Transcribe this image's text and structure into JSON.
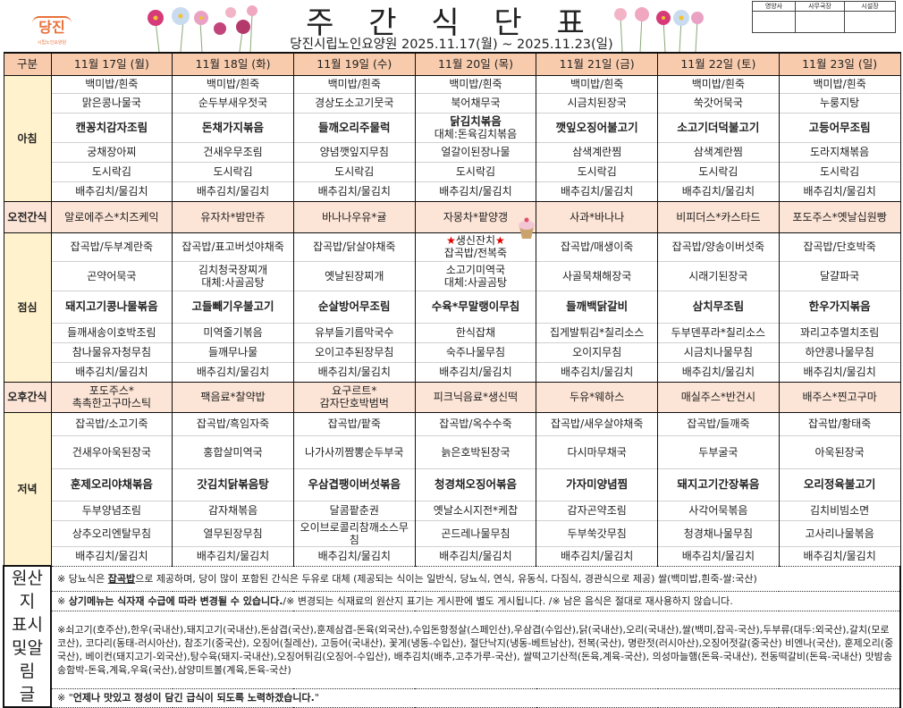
{
  "header": {
    "logo_text": "당진",
    "logo_sub": "시립노인요양원",
    "title": "주 간 식 단 표",
    "subtitle": "당진시립노인요양원 2025.11.17(월) ~ 2025.11.23(일)",
    "approvals": [
      "영양사",
      "사무국장",
      "시설장"
    ]
  },
  "table": {
    "corner": "구분",
    "days": [
      "11월 17일 (월)",
      "11월 18일 (화)",
      "11월 19일 (수)",
      "11월 20일 (목)",
      "11월 21일 (금)",
      "11월 22일 (토)",
      "11월 23일 (일)"
    ],
    "sections": [
      {
        "label": "아침",
        "type": "meal",
        "rows": [
          [
            "백미밥/흰죽",
            "백미밥/흰죽",
            "백미밥/흰죽",
            "백미밥/흰죽",
            "백미밥/흰죽",
            "백미밥/흰죽",
            "백미밥/흰죽"
          ],
          [
            "맑은콩나물국",
            "순두부새우젓국",
            "경상도소고기뭇국",
            "북어채무국",
            "시금치된장국",
            "쑥갓어묵국",
            "누룽지탕"
          ],
          [
            "캔꽁치감자조림",
            "돈채가지볶음",
            "들깨오리주물럭",
            "닭김치볶음\n대체:돈육김치볶음",
            "깻잎오징어불고기",
            "소고기더덕불고기",
            "고등어무조림"
          ],
          [
            "궁채장아찌",
            "건새우무조림",
            "양념깻잎지무침",
            "얼갈이된장나물",
            "삼색계란찜",
            "삼색계란찜",
            "도라지채볶음"
          ],
          [
            "도시락김",
            "도시락김",
            "도시락김",
            "도시락김",
            "도시락김",
            "도시락김",
            "도시락김"
          ],
          [
            "배추김치/물김치",
            "배추김치/물김치",
            "배추김치/물김치",
            "배추김치/물김치",
            "배추김치/물김치",
            "배추김치/물김치",
            "배추김치/물김치"
          ]
        ]
      },
      {
        "label": "오전간식",
        "type": "snack",
        "rows": [
          [
            "알로에주스*치즈케익",
            "유자차*밤만쥬",
            "바나나우유*귤",
            "자몽차*팥양갱",
            "사과*바나나",
            "비피더스*카스타드",
            "포도주스*옛날십원빵"
          ]
        ]
      },
      {
        "label": "점심",
        "type": "meal",
        "rows": [
          [
            "잡곡밥/두부계란죽",
            "잡곡밥/표고버섯야채죽",
            "잡곡밥/닭살야채죽",
            "★생신잔치★\n잡곡밥/전복죽",
            "잡곡밥/매생이죽",
            "잡곡밥/양송이버섯죽",
            "잡곡밥/단호박죽"
          ],
          [
            "곤약어묵국",
            "김치청국장찌개\n대체:사골곰탕",
            "옛날된장찌개",
            "소고기미역국\n대체:사골곰탕",
            "사골묵채해장국",
            "시래기된장국",
            "달걀파국"
          ],
          [
            "돼지고기콩나물볶음",
            "고들빼기우불고기",
            "순살방어무조림",
            "수육*무말랭이무침",
            "들깨백닭갈비",
            "삼치무조림",
            "한우가지볶음"
          ],
          [
            "들깨새송이호박조림",
            "미역줄기볶음",
            "유부들기름막국수",
            "한식잡채",
            "집게발튀김*칠리소스",
            "두부덴푸라*칠리소스",
            "꽈리고추멸치조림"
          ],
          [
            "참나물유자청무침",
            "들깨무나물",
            "오이고추된장무침",
            "숙주나물무침",
            "오이지무침",
            "시금치나물무침",
            "하얀콩나물무침"
          ],
          [
            "배추김치/물김치",
            "배추김치/물김치",
            "배추김치/물김치",
            "배추김치/물김치",
            "배추김치/물김치",
            "배추김치/물김치",
            "배추김치/물김치"
          ]
        ]
      },
      {
        "label": "오후간식",
        "type": "snack",
        "rows": [
          [
            "포도주스*\n촉촉한고구마스틱",
            "팩음료*찰약밥",
            "요구르트*\n감자단호박범벅",
            "피크닉음료*생신떡",
            "두유*웨하스",
            "매실주스*반건시",
            "배주스*찐고구마"
          ]
        ]
      },
      {
        "label": "저녁",
        "type": "meal",
        "rows": [
          [
            "잡곡밥/소고기죽",
            "잡곡밥/흑임자죽",
            "잡곡밥/팥죽",
            "잡곡밥/옥수수죽",
            "잡곡밥/새우살야채죽",
            "잡곡밥/들깨죽",
            "잡곡밥/황태죽"
          ],
          [
            "건새우아욱된장국",
            "홍합살미역국",
            "나가사끼짬뽕순두부국",
            "늙은호박된장국",
            "다시마무채국",
            "두부굴국",
            "아욱된장국"
          ],
          [
            "훈제오리야채볶음",
            "갓김치닭볶음탕",
            "우삼겹팽이버섯볶음",
            "청경채오징어볶음",
            "가자미양념찜",
            "돼지고기간장볶음",
            "오리정육불고기"
          ],
          [
            "두부양념조림",
            "감자채볶음",
            "달콤팥춘권",
            "옛날소시지전*케찹",
            "감자곤약조림",
            "사각어묵볶음",
            "김치비빔소면"
          ],
          [
            "상추오리엔탈무침",
            "열무된장무침",
            "오이브로콜리참깨소스무침",
            "곤드레나물무침",
            "두부쑥갓무침",
            "청경채나물무침",
            "고사리나물볶음"
          ],
          [
            "배추김치/물김치",
            "배추김치/물김치",
            "배추김치/물김치",
            "배추김치/물김치",
            "배추김치/물김치",
            "배추김치/물김치",
            "배추김치/물김치"
          ]
        ]
      }
    ]
  },
  "footer": {
    "label": "원산지\n표시\n및알림\n글",
    "notes": [
      [
        {
          "t": "※ 당뇨식은 "
        },
        {
          "t": "잡곡밥",
          "s": "b u"
        },
        {
          "t": "으로 제공하며, 당이 많이 포함된 간식은 두유로 대체 (제공되는 식이는 일반식, 당뇨식, 연식, 유동식, 다짐식, 경관식으로 제공) 쌀(백미밥,흰죽-쌀:국산)"
        }
      ],
      [
        {
          "t": "※  "
        },
        {
          "t": "상기메뉴는 식자재 수급에 따라 변경될 수 있습니다.",
          "s": "b"
        },
        {
          "t": "/※  변경되는 식재료의 원산지 표기는 게시판에 별도 게시됩니다.  /※  남은 음식은 절대로 재사용하지 않습니다."
        }
      ],
      [
        {
          "t": "※쇠고기(호주산),한우(국내산),돼지고기(국내산),돈삼겹(국산),훈제삼겹-돈육(외국산),수입돈항정살(스페인산),우삼겹(수입산),닭(국내산),오리(국내산),쌀(백미,잡곡-국산),두부류(대두:외국산),갈치(모로코산), 코다리(동태-러시아산), 참조기(중국산), 오징어(칠레산), 고등어(국내산), 꽃게(냉동-수입산), 절단낙지(냉동-베트남산), 전복(국산), 명란젓(러시아산),오징어젓갈(중국산) 비엔나(국산), 훈제오리(중국산), 베이컨(돼지고기-외국산),탕수육(돼지-국내산),오징어튀김(오징어-수입산), 배추김치(배추,고추가루-국산), 쌀떡고기산적(돈육,계육-국산), 의성마늘햄(돈육-국내산), 전동떡갈비(돈육-국내산) 맛밤송송함박-돈육,계육,우육(국산),삼양미트볼(계육,돈육-국산)"
        }
      ],
      [
        {
          "t": "※ \""
        },
        {
          "t": "언제나 맛있고 정성이 담긴 급식이 되도록 노력하겠습니다.",
          "s": "b"
        },
        {
          "t": "\""
        }
      ]
    ]
  },
  "colors": {
    "header_bg": "#f8cbad",
    "label_bg": "#fff2cc",
    "snack_bg": "#fce4d6",
    "logo": "#e8713a",
    "star": "#e00000"
  }
}
